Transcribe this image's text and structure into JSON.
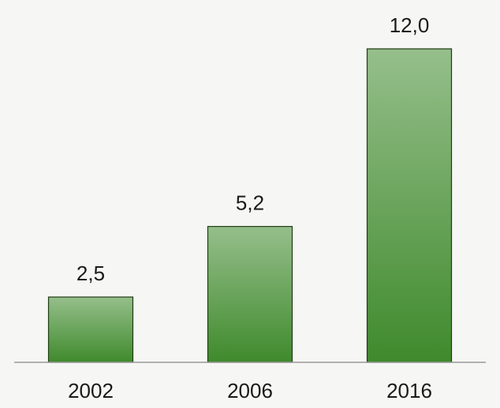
{
  "chart_data": {
    "type": "bar",
    "categories": [
      "2002",
      "2006",
      "2016"
    ],
    "values": [
      2.5,
      5.2,
      12.0
    ],
    "value_labels": [
      "2,5",
      "5,2",
      "12,0"
    ],
    "color": "#3f8a2c"
  }
}
